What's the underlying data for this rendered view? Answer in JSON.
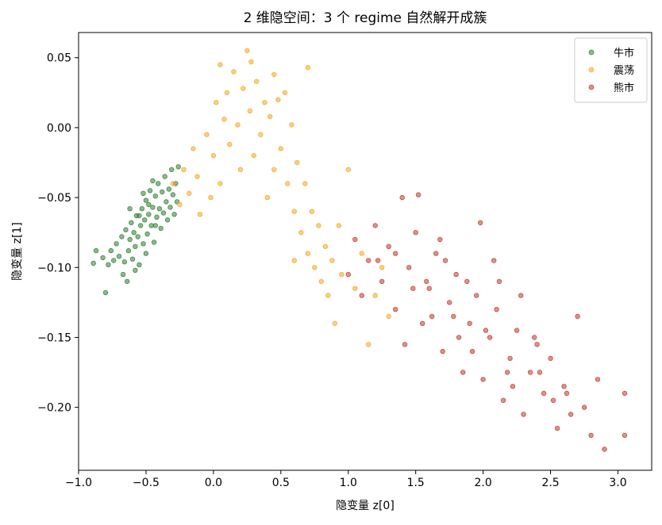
{
  "chart_data": {
    "type": "scatter",
    "title": "2 维隐空间：3 个 regime 自然解开成簇",
    "xlabel": "隐变量 z[0]",
    "ylabel": "隐变量 z[1]",
    "xlim": [
      -1.0,
      3.25
    ],
    "ylim": [
      -0.245,
      0.068
    ],
    "xticks": [
      -1.0,
      -0.5,
      0.0,
      0.5,
      1.0,
      1.5,
      2.0,
      2.5,
      3.0
    ],
    "xtick_labels": [
      "−1.0",
      "−0.5",
      "0.0",
      "0.5",
      "1.0",
      "1.5",
      "2.0",
      "2.5",
      "3.0"
    ],
    "yticks": [
      0.05,
      0.0,
      -0.05,
      -0.1,
      -0.15,
      -0.2
    ],
    "ytick_labels": [
      "0.05",
      "0.00",
      "−0.05",
      "−0.10",
      "−0.15",
      "−0.20"
    ],
    "grid": false,
    "legend_position": "top-right",
    "series": [
      {
        "name": "牛市",
        "color": "#2e7d32",
        "points": [
          [
            -0.89,
            -0.097
          ],
          [
            -0.87,
            -0.088
          ],
          [
            -0.82,
            -0.093
          ],
          [
            -0.8,
            -0.118
          ],
          [
            -0.78,
            -0.098
          ],
          [
            -0.76,
            -0.088
          ],
          [
            -0.74,
            -0.095
          ],
          [
            -0.72,
            -0.083
          ],
          [
            -0.7,
            -0.092
          ],
          [
            -0.68,
            -0.078
          ],
          [
            -0.67,
            -0.105
          ],
          [
            -0.66,
            -0.096
          ],
          [
            -0.65,
            -0.073
          ],
          [
            -0.64,
            -0.11
          ],
          [
            -0.63,
            -0.088
          ],
          [
            -0.62,
            -0.08
          ],
          [
            -0.61,
            -0.068
          ],
          [
            -0.6,
            -0.094
          ],
          [
            -0.59,
            -0.075
          ],
          [
            -0.58,
            -0.085
          ],
          [
            -0.57,
            -0.063
          ],
          [
            -0.56,
            -0.078
          ],
          [
            -0.55,
            -0.098
          ],
          [
            -0.54,
            -0.07
          ],
          [
            -0.53,
            -0.058
          ],
          [
            -0.52,
            -0.083
          ],
          [
            -0.51,
            -0.066
          ],
          [
            -0.5,
            -0.052
          ],
          [
            -0.49,
            -0.076
          ],
          [
            -0.48,
            -0.062
          ],
          [
            -0.47,
            -0.045
          ],
          [
            -0.46,
            -0.07
          ],
          [
            -0.45,
            -0.057
          ],
          [
            -0.44,
            -0.082
          ],
          [
            -0.43,
            -0.049
          ],
          [
            -0.42,
            -0.064
          ],
          [
            -0.41,
            -0.04
          ],
          [
            -0.4,
            -0.058
          ],
          [
            -0.39,
            -0.072
          ],
          [
            -0.38,
            -0.046
          ],
          [
            -0.37,
            -0.061
          ],
          [
            -0.36,
            -0.035
          ],
          [
            -0.35,
            -0.053
          ],
          [
            -0.34,
            -0.066
          ],
          [
            -0.33,
            -0.044
          ],
          [
            -0.32,
            -0.057
          ],
          [
            -0.31,
            -0.03
          ],
          [
            -0.3,
            -0.048
          ],
          [
            -0.29,
            -0.062
          ],
          [
            -0.28,
            -0.04
          ],
          [
            -0.27,
            -0.053
          ],
          [
            -0.26,
            -0.028
          ],
          [
            -0.55,
            -0.063
          ],
          [
            -0.52,
            -0.047
          ],
          [
            -0.48,
            -0.055
          ],
          [
            -0.45,
            -0.038
          ],
          [
            -0.43,
            -0.07
          ],
          [
            -0.5,
            -0.09
          ],
          [
            -0.58,
            -0.102
          ],
          [
            -0.62,
            -0.058
          ]
        ]
      },
      {
        "name": "震荡",
        "color": "#f5a623",
        "points": [
          [
            -0.3,
            -0.04
          ],
          [
            -0.25,
            -0.055
          ],
          [
            -0.22,
            -0.03
          ],
          [
            -0.18,
            -0.047
          ],
          [
            -0.15,
            -0.015
          ],
          [
            -0.12,
            -0.035
          ],
          [
            -0.1,
            -0.062
          ],
          [
            -0.05,
            -0.005
          ],
          [
            0.0,
            -0.02
          ],
          [
            0.02,
            0.018
          ],
          [
            0.05,
            -0.04
          ],
          [
            0.08,
            0.006
          ],
          [
            0.1,
            0.025
          ],
          [
            0.12,
            -0.012
          ],
          [
            0.15,
            0.04
          ],
          [
            0.18,
            0.002
          ],
          [
            0.2,
            -0.03
          ],
          [
            0.22,
            0.028
          ],
          [
            0.25,
            0.055
          ],
          [
            0.27,
            0.012
          ],
          [
            0.3,
            -0.02
          ],
          [
            0.32,
            0.033
          ],
          [
            0.35,
            -0.005
          ],
          [
            0.38,
            0.018
          ],
          [
            0.4,
            -0.05
          ],
          [
            0.42,
            0.008
          ],
          [
            0.45,
            -0.03
          ],
          [
            0.48,
            0.02
          ],
          [
            0.5,
            -0.015
          ],
          [
            0.53,
            0.025
          ],
          [
            0.55,
            -0.04
          ],
          [
            0.58,
            0.002
          ],
          [
            0.6,
            -0.06
          ],
          [
            0.62,
            -0.025
          ],
          [
            0.65,
            -0.075
          ],
          [
            0.68,
            -0.04
          ],
          [
            0.7,
            -0.09
          ],
          [
            0.73,
            -0.06
          ],
          [
            0.75,
            -0.1
          ],
          [
            0.78,
            -0.07
          ],
          [
            0.8,
            -0.11
          ],
          [
            0.83,
            -0.085
          ],
          [
            0.85,
            -0.12
          ],
          [
            0.88,
            -0.095
          ],
          [
            0.9,
            -0.14
          ],
          [
            0.93,
            -0.07
          ],
          [
            0.95,
            -0.105
          ],
          [
            1.0,
            -0.03
          ],
          [
            1.05,
            -0.115
          ],
          [
            1.1,
            -0.09
          ],
          [
            1.15,
            -0.155
          ],
          [
            1.2,
            -0.12
          ],
          [
            1.25,
            -0.1
          ],
          [
            1.3,
            -0.135
          ],
          [
            0.7,
            0.043
          ],
          [
            0.45,
            0.038
          ],
          [
            0.05,
            0.045
          ],
          [
            0.28,
            0.047
          ],
          [
            -0.02,
            -0.05
          ],
          [
            0.6,
            -0.095
          ]
        ]
      },
      {
        "name": "熊市",
        "color": "#c0392b",
        "points": [
          [
            1.0,
            -0.105
          ],
          [
            1.05,
            -0.08
          ],
          [
            1.1,
            -0.12
          ],
          [
            1.15,
            -0.095
          ],
          [
            1.2,
            -0.07
          ],
          [
            1.25,
            -0.11
          ],
          [
            1.3,
            -0.085
          ],
          [
            1.35,
            -0.13
          ],
          [
            1.4,
            -0.05
          ],
          [
            1.45,
            -0.1
          ],
          [
            1.5,
            -0.075
          ],
          [
            1.55,
            -0.14
          ],
          [
            1.6,
            -0.115
          ],
          [
            1.65,
            -0.09
          ],
          [
            1.7,
            -0.16
          ],
          [
            1.75,
            -0.125
          ],
          [
            1.8,
            -0.105
          ],
          [
            1.85,
            -0.175
          ],
          [
            1.9,
            -0.14
          ],
          [
            1.95,
            -0.12
          ],
          [
            2.0,
            -0.18
          ],
          [
            2.05,
            -0.15
          ],
          [
            2.1,
            -0.13
          ],
          [
            2.15,
            -0.195
          ],
          [
            2.2,
            -0.165
          ],
          [
            2.25,
            -0.145
          ],
          [
            2.3,
            -0.205
          ],
          [
            2.35,
            -0.175
          ],
          [
            2.4,
            -0.155
          ],
          [
            2.45,
            -0.19
          ],
          [
            2.5,
            -0.165
          ],
          [
            2.55,
            -0.215
          ],
          [
            2.6,
            -0.185
          ],
          [
            2.65,
            -0.205
          ],
          [
            2.7,
            -0.135
          ],
          [
            2.75,
            -0.2
          ],
          [
            2.8,
            -0.22
          ],
          [
            2.85,
            -0.18
          ],
          [
            2.9,
            -0.23
          ],
          [
            3.05,
            -0.22
          ],
          [
            3.05,
            -0.19
          ],
          [
            1.52,
            -0.048
          ],
          [
            1.72,
            -0.095
          ],
          [
            1.88,
            -0.11
          ],
          [
            1.98,
            -0.068
          ],
          [
            2.08,
            -0.095
          ],
          [
            2.28,
            -0.12
          ],
          [
            2.18,
            -0.175
          ],
          [
            1.62,
            -0.135
          ],
          [
            1.42,
            -0.155
          ],
          [
            1.58,
            -0.11
          ],
          [
            1.82,
            -0.15
          ],
          [
            2.02,
            -0.145
          ],
          [
            2.38,
            -0.15
          ],
          [
            2.52,
            -0.195
          ],
          [
            1.68,
            -0.08
          ],
          [
            1.35,
            -0.09
          ],
          [
            1.22,
            -0.095
          ],
          [
            2.12,
            -0.11
          ],
          [
            1.78,
            -0.135
          ],
          [
            1.92,
            -0.16
          ],
          [
            2.42,
            -0.175
          ],
          [
            2.62,
            -0.19
          ],
          [
            1.48,
            -0.115
          ],
          [
            2.22,
            -0.185
          ]
        ]
      }
    ]
  }
}
